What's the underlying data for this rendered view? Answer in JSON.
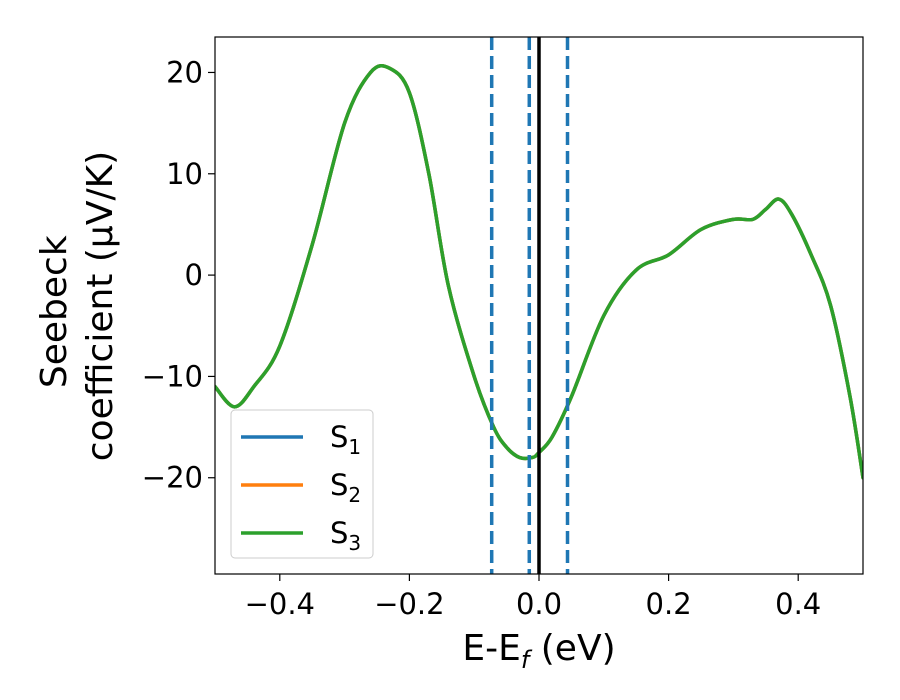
{
  "chart_data": {
    "type": "line",
    "xlabel": {
      "main": "E-E",
      "sub": "f",
      "unit": " (eV)"
    },
    "ylabel": {
      "line1": "Seebeck",
      "line2": "coefficient  (μV/K)"
    },
    "xlim": [
      -0.5,
      0.5
    ],
    "ylim": [
      -29.5,
      23.5
    ],
    "xticks": [
      {
        "value": -0.4,
        "label": "−0.4"
      },
      {
        "value": -0.2,
        "label": "−0.2"
      },
      {
        "value": 0.0,
        "label": "0.0"
      },
      {
        "value": 0.2,
        "label": "0.2"
      },
      {
        "value": 0.4,
        "label": "0.4"
      }
    ],
    "yticks": [
      {
        "value": 20,
        "label": "20"
      },
      {
        "value": 10,
        "label": "10"
      },
      {
        "value": 0,
        "label": "0"
      },
      {
        "value": -10,
        "label": "−10"
      },
      {
        "value": -20,
        "label": "−20"
      }
    ],
    "grid": false,
    "legend": {
      "position": "lower-left"
    },
    "series": [
      {
        "name": {
          "base": "S",
          "sub": "1"
        },
        "color": "#1f77b4",
        "x": [
          -0.5,
          -0.47,
          -0.44,
          -0.4,
          -0.35,
          -0.3,
          -0.26,
          -0.23,
          -0.2,
          -0.17,
          -0.14,
          -0.1,
          -0.07,
          -0.05,
          -0.03,
          -0.01,
          0.0,
          0.02,
          0.05,
          0.1,
          0.15,
          0.2,
          0.25,
          0.3,
          0.33,
          0.35,
          0.37,
          0.39,
          0.42,
          0.45,
          0.48,
          0.5
        ],
        "y": [
          -11,
          -13,
          -11,
          -7,
          3,
          15,
          20,
          20.4,
          18,
          10,
          -1,
          -10,
          -15,
          -17,
          -18,
          -18,
          -17.5,
          -16,
          -12,
          -4,
          0.5,
          2,
          4.5,
          5.5,
          5.5,
          6.5,
          7.5,
          6,
          2,
          -3,
          -12,
          -20
        ]
      },
      {
        "name": {
          "base": "S",
          "sub": "2"
        },
        "color": "#ff7f0e",
        "x": [
          -0.5,
          -0.47,
          -0.44,
          -0.4,
          -0.35,
          -0.3,
          -0.26,
          -0.23,
          -0.2,
          -0.17,
          -0.14,
          -0.1,
          -0.07,
          -0.05,
          -0.03,
          -0.01,
          0.0,
          0.02,
          0.05,
          0.1,
          0.15,
          0.2,
          0.25,
          0.3,
          0.33,
          0.35,
          0.37,
          0.39,
          0.42,
          0.45,
          0.48,
          0.5
        ],
        "y": [
          -11,
          -13,
          -11,
          -7,
          3,
          15,
          20,
          20.4,
          18,
          10,
          -1,
          -10,
          -15,
          -17,
          -18,
          -18,
          -17.5,
          -16,
          -12,
          -4,
          0.5,
          2,
          4.5,
          5.5,
          5.5,
          6.5,
          7.5,
          6,
          2,
          -3,
          -12,
          -20
        ]
      },
      {
        "name": {
          "base": "S",
          "sub": "3"
        },
        "color": "#2ca02c",
        "x": [
          -0.5,
          -0.47,
          -0.44,
          -0.4,
          -0.35,
          -0.3,
          -0.26,
          -0.23,
          -0.2,
          -0.17,
          -0.14,
          -0.1,
          -0.07,
          -0.05,
          -0.03,
          -0.01,
          0.0,
          0.02,
          0.05,
          0.1,
          0.15,
          0.2,
          0.25,
          0.3,
          0.33,
          0.35,
          0.37,
          0.39,
          0.42,
          0.45,
          0.48,
          0.5
        ],
        "y": [
          -11,
          -13,
          -11,
          -7,
          3,
          15,
          20,
          20.4,
          18,
          10,
          -1,
          -10,
          -15,
          -17,
          -18,
          -18,
          -17.5,
          -16,
          -12,
          -4,
          0.5,
          2,
          4.5,
          5.5,
          5.5,
          6.5,
          7.5,
          6,
          2,
          -3,
          -12,
          -20
        ]
      }
    ],
    "vlines": [
      {
        "x": -0.073,
        "color": "#1f77b4",
        "style": "dashed"
      },
      {
        "x": -0.015,
        "color": "#1f77b4",
        "style": "dashed"
      },
      {
        "x": 0.0,
        "color": "#000000",
        "style": "solid"
      },
      {
        "x": 0.044,
        "color": "#1f77b4",
        "style": "dashed"
      }
    ]
  }
}
